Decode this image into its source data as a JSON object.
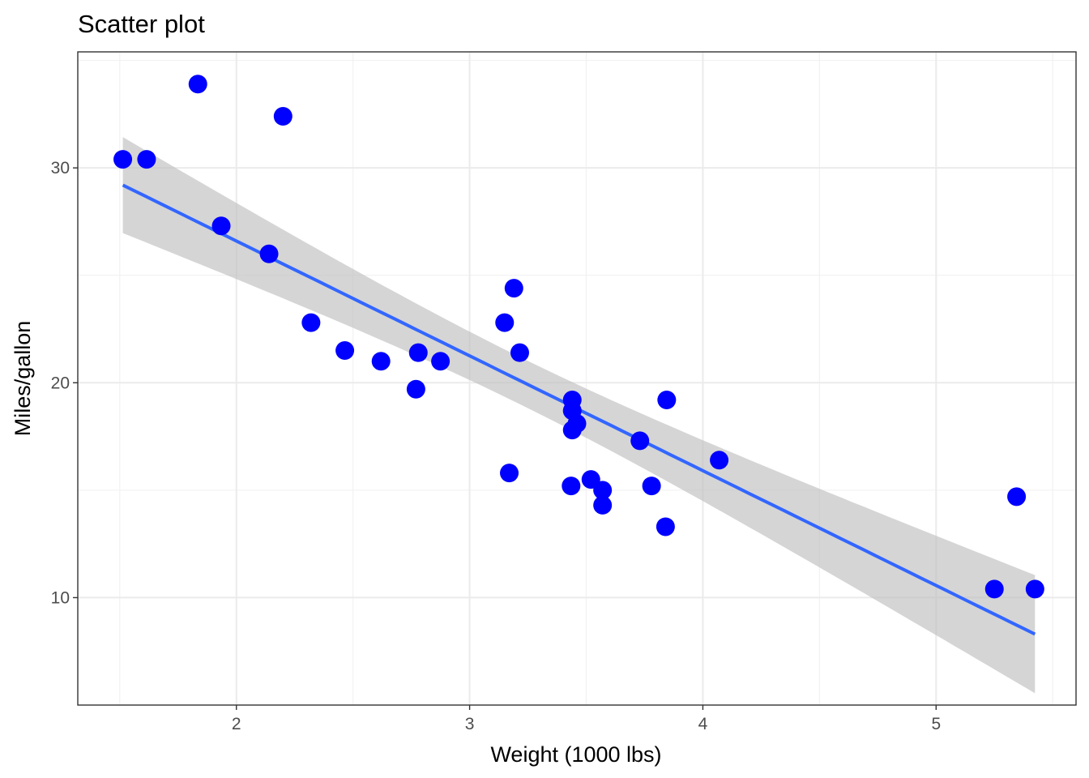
{
  "chart_data": {
    "type": "scatter",
    "title": "Scatter plot",
    "xlabel": "Weight (1000 lbs)",
    "ylabel": "Miles/gallon",
    "xlim": [
      1.32,
      5.6
    ],
    "ylim": [
      5.0,
      35.4
    ],
    "x_ticks": [
      2,
      3,
      4,
      5
    ],
    "x_tick_labels": [
      "2",
      "3",
      "4",
      "5"
    ],
    "y_ticks": [
      10,
      20,
      30
    ],
    "y_tick_labels": [
      "10",
      "20",
      "30"
    ],
    "x_minor_ticks": [
      1.5,
      2.5,
      3.5,
      4.5,
      5.5
    ],
    "y_minor_ticks": [
      5,
      15,
      25,
      35
    ],
    "grid": true,
    "legend": "none",
    "point_color": "#0000ff",
    "line_color": "#3366ff",
    "band_color": "#bfbfbf",
    "points": [
      {
        "x": 2.62,
        "y": 21.0
      },
      {
        "x": 2.875,
        "y": 21.0
      },
      {
        "x": 2.32,
        "y": 22.8
      },
      {
        "x": 3.215,
        "y": 21.4
      },
      {
        "x": 3.44,
        "y": 18.7
      },
      {
        "x": 3.46,
        "y": 18.1
      },
      {
        "x": 3.57,
        "y": 14.3
      },
      {
        "x": 3.19,
        "y": 24.4
      },
      {
        "x": 3.15,
        "y": 22.8
      },
      {
        "x": 3.44,
        "y": 19.2
      },
      {
        "x": 3.44,
        "y": 17.8
      },
      {
        "x": 4.07,
        "y": 16.4
      },
      {
        "x": 3.73,
        "y": 17.3
      },
      {
        "x": 3.78,
        "y": 15.2
      },
      {
        "x": 5.25,
        "y": 10.4
      },
      {
        "x": 5.424,
        "y": 10.4
      },
      {
        "x": 5.345,
        "y": 14.7
      },
      {
        "x": 2.2,
        "y": 32.4
      },
      {
        "x": 1.615,
        "y": 30.4
      },
      {
        "x": 1.835,
        "y": 33.9
      },
      {
        "x": 2.465,
        "y": 21.5
      },
      {
        "x": 3.52,
        "y": 15.5
      },
      {
        "x": 3.435,
        "y": 15.2
      },
      {
        "x": 3.84,
        "y": 13.3
      },
      {
        "x": 3.845,
        "y": 19.2
      },
      {
        "x": 1.935,
        "y": 27.3
      },
      {
        "x": 2.14,
        "y": 26.0
      },
      {
        "x": 1.513,
        "y": 30.4
      },
      {
        "x": 3.17,
        "y": 15.8
      },
      {
        "x": 2.77,
        "y": 19.7
      },
      {
        "x": 3.57,
        "y": 15.0
      },
      {
        "x": 2.78,
        "y": 21.4
      }
    ],
    "fit": {
      "method": "lm",
      "intercept": 37.285,
      "slope": -5.344,
      "x_range": [
        1.513,
        5.424
      ],
      "confidence_level": 0.95
    }
  }
}
